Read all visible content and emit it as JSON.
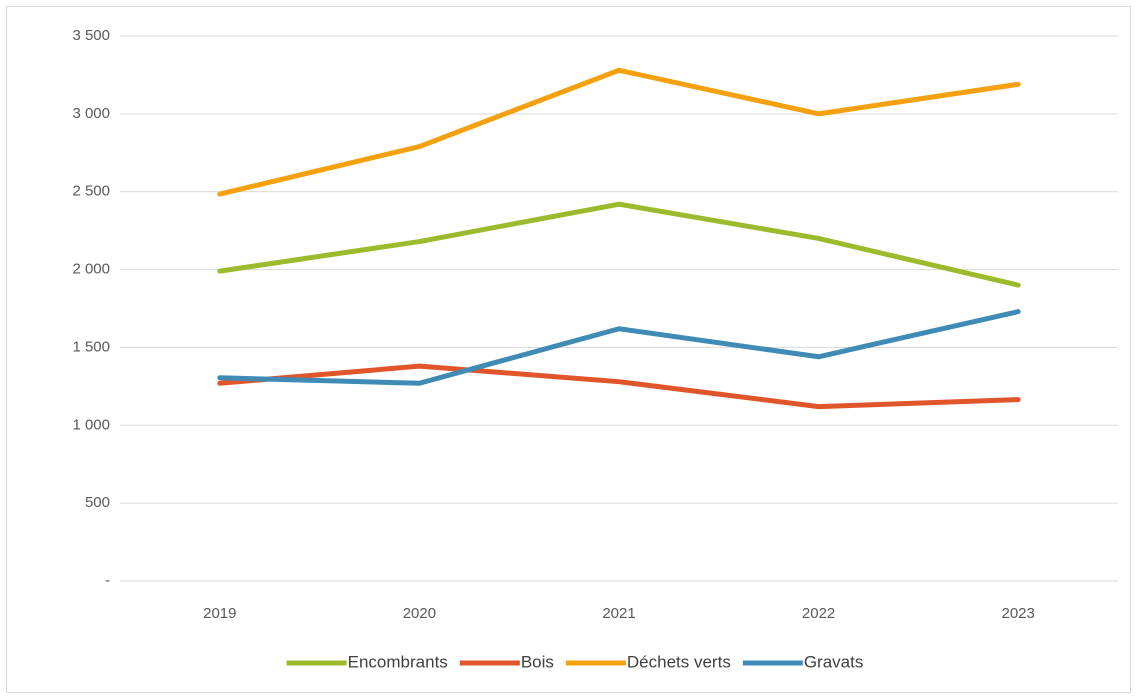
{
  "chart_data": {
    "type": "line",
    "categories": [
      "2019",
      "2020",
      "2021",
      "2022",
      "2023"
    ],
    "series": [
      {
        "name": "Encombrants",
        "color": "#9bbb2d",
        "values": [
          1990,
          2180,
          2420,
          2200,
          1900
        ]
      },
      {
        "name": "Bois",
        "color": "#e0552a",
        "values": [
          1270,
          1380,
          1280,
          1120,
          1165
        ]
      },
      {
        "name": "Déchets verts",
        "color": "#f5a00f",
        "values": [
          2485,
          2790,
          3280,
          3000,
          3190
        ]
      },
      {
        "name": "Gravats",
        "color": "#3f8bb5",
        "values": [
          1305,
          1270,
          1620,
          1440,
          1730
        ]
      }
    ],
    "ylim": [
      0,
      3500
    ],
    "yticks": [
      {
        "value": 0,
        "label": "-"
      },
      500,
      {
        "value": 1000,
        "label": "1 000"
      },
      {
        "value": 1500,
        "label": "1 500"
      },
      {
        "value": 2000,
        "label": "2 000"
      },
      {
        "value": 2500,
        "label": "2 500"
      },
      {
        "value": 3000,
        "label": "3 000"
      },
      {
        "value": 3500,
        "label": "3 500"
      }
    ],
    "grid": true,
    "legend": "bottom"
  }
}
